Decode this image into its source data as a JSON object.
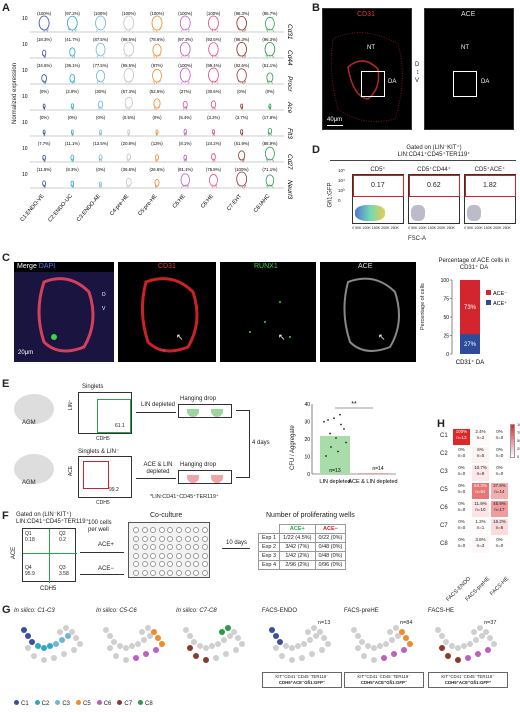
{
  "panels": {
    "a": "A",
    "b": "B",
    "c": "C",
    "d": "D",
    "e": "E",
    "f": "F",
    "g": "G",
    "h": "H"
  },
  "panelA": {
    "ylabel": "Normalized expression",
    "ytick": "10",
    "genes": [
      "Cd31",
      "Cd44",
      "Procr",
      "Ace",
      "Flt3",
      "Cd27",
      "Neurl3"
    ],
    "groups": [
      "C1:ENDO-VE",
      "C2:ENDO-UC",
      "C3:ENDO-AE",
      "C4:pre-HE^KO",
      "C5:pre-HE",
      "C6:HE^KO",
      "C6:HE",
      "C7:EHT",
      "C8:IAHC"
    ],
    "colors": [
      "#3b4ea0",
      "#2ea6c8",
      "#6db6d8",
      "#c5c5c5",
      "#f08a2a",
      "#bd5ec0",
      "#e04d8c",
      "#8c3a2d",
      "#2b9a4a"
    ],
    "pct": [
      [
        "(100%)",
        "(97.2%)",
        "(100%)",
        "(100%)",
        "(100%)",
        "(100%)",
        "(100%)",
        "(96.3%)",
        "(86.7%)"
      ],
      [
        "(18.3%)",
        "(41.7%)",
        "(87.5%)",
        "(98.5%)",
        "(78.6%)",
        "(97.3%)",
        "(93.5%)",
        "(96.3%)",
        "(96.3%)"
      ],
      [
        "(34.6%)",
        "(36.1%)",
        "(77.5%)",
        "(95.5%)",
        "(87%)",
        "(100%)",
        "(99.4%)",
        "(92.6%)",
        "(51.1%)"
      ],
      [
        "(0%)",
        "(2.8%)",
        "(30%)",
        "(67.3%)",
        "(52.6%)",
        "(27%)",
        "(30.6%)",
        "(0%)",
        "(0%)"
      ],
      [
        "(0%)",
        "(0%)",
        "(0%)",
        "(0.5%)",
        "(0%)",
        "(5.4%)",
        "(3.2%)",
        "(3.7%)",
        "(17.8%)"
      ],
      [
        "(7.7%)",
        "(11.1%)",
        "(12.5%)",
        "(20.8%)",
        "(13%)",
        "(8.1%)",
        "(24.2%)",
        "(51.9%)",
        "(88.9%)"
      ],
      [
        "(11.5%)",
        "(8.3%)",
        "(0%)",
        "(36.6%)",
        "(26.6%)",
        "(81.1%)",
        "(75.8%)",
        "(100%)",
        "(71.1%)"
      ]
    ]
  },
  "panelB": {
    "ch1": "CD31",
    "ch2": "ACE",
    "nt": "NT",
    "da": "DA",
    "d": "D",
    "v": "V",
    "scale": "40μm"
  },
  "panelC": {
    "merge": "Merge ",
    "dapi": "DAPI",
    "cd31": "CD31",
    "runx1": "RUNX1",
    "ace": "ACE",
    "scale": "20μm",
    "d": "D",
    "v": "V",
    "bar_title": "Percentage of ACE cells in CD31⁺ DA",
    "ylabel": "Percentage of cells",
    "yticks": [
      "100",
      "75",
      "50",
      "25",
      "0"
    ],
    "neg_label": "ACE⁻",
    "pos_label": "ACE⁺",
    "xlabel": "CD31⁺ DA",
    "neg_color": "#d3252f",
    "pos_color": "#2e4a9a"
  },
  "chart_data": {
    "type": "bar",
    "categories": [
      "CD31⁺ DA"
    ],
    "series": [
      {
        "name": "ACE⁻",
        "values": [
          73
        ]
      },
      {
        "name": "ACE⁺",
        "values": [
          27
        ]
      }
    ],
    "title": "Percentage of ACE cells in CD31⁺ DA",
    "ylabel": "Percentage of cells",
    "ylim": [
      0,
      100
    ]
  },
  "panelD": {
    "header1": "Gated on (LIN⁻KIT⁺)",
    "header2": "LIN:CD41⁺CD45⁺TER119⁺",
    "gates": [
      "CD5⁺",
      "CD5⁺CD44⁺",
      "CD5⁺ACE⁺"
    ],
    "values": [
      "0.17",
      "0.62",
      "1.82"
    ],
    "ylabel": "Gfi1:GFP",
    "xlabel": "FSC-A",
    "yticks": [
      "10⁵",
      "10⁴",
      "10³",
      "0"
    ],
    "xticks": "0  50K 100K 150K 200K 250K"
  },
  "panelE": {
    "agm": "AGM",
    "singlets": "Singlets",
    "singlets_lin": "Singlets & LIN⁻",
    "gate1": "61.1",
    "gate2": "99.2",
    "lin_depleted": "LIN depleted",
    "ace_lin_depleted": "ACE & LIN depleted",
    "hanging": "Hanging drop",
    "days": "4 days",
    "lin_axis": "LIN⁺",
    "ace_axis": "ACE",
    "cdh5": "CDH5",
    "footnote": "*LIN:CD41⁺CD45⁺TER119⁺",
    "chart_ylabel": "CFU / Aggregate",
    "sig": "**",
    "n1": "n=13",
    "n2": "n=14",
    "x1": "LIN depleted",
    "x2": "ACE & LIN depleted",
    "yticks": [
      "40",
      "30",
      "20",
      "10",
      "0"
    ]
  },
  "panelF": {
    "gate_title": "Gated on (LIN⁻KIT⁺)",
    "gate_sub": "LIN:CD41⁺CD45⁺TER119⁺",
    "q1": "Q1",
    "q1v": "0.18",
    "q2": "Q2",
    "q2v": "0.2",
    "q3": "Q3",
    "q3v": "3.58",
    "q4": "Q4",
    "q4v": "95.9",
    "yaxis": "ACE",
    "xaxis": "CDH5",
    "cells": "100 cells per well",
    "ace_pos": "ACE+",
    "ace_neg": "ACE−",
    "coculture": "Co-culture",
    "days": "10 days",
    "table_title": "Number of proliferating wells",
    "col1": "ACE+",
    "col2": "ACE−",
    "rows": [
      {
        "exp": "Exp 1",
        "pos": "1/22 (4.5%)",
        "neg": "0/22 (0%)"
      },
      {
        "exp": "Exp 2",
        "pos": "3/42 (7%)",
        "neg": "0/48 (0%)"
      },
      {
        "exp": "Exp 3",
        "pos": "1/42 (2%)",
        "neg": "0/48 (0%)"
      },
      {
        "exp": "Exp 4",
        "pos": "2/96 (2%)",
        "neg": "0/96 (0%)"
      }
    ]
  },
  "panelG": {
    "titles": [
      "In silico: C1-C3",
      "In silico: C5-C6",
      "In silico: C7-C8",
      "FACS-ENDO^ACE-NEG",
      "FACS-preHE^ACE-SP",
      "FACS-HE^ACE-DP"
    ],
    "n": [
      "n=13",
      "n=84",
      "n=37"
    ],
    "gates": [
      [
        "KIT⁺CD41⁻CD45⁻TER119⁻",
        "CDH5⁺ACE⁻Gfi1:GFP⁻"
      ],
      [
        "KIT⁺CD41⁻CD45⁻TER119⁻",
        "CDH5⁺ACE⁺Gfi1:GFP⁻"
      ],
      [
        "KIT⁺CD41⁻CD45⁻TER119⁻",
        "CDH5⁺ACE⁺Gfi1:GFP⁺"
      ]
    ],
    "legend": [
      "C1",
      "C2",
      "C3",
      "C5",
      "C6",
      "C7",
      "C8"
    ],
    "legend_colors": [
      "#3b4ea0",
      "#2ea6c8",
      "#6db6d8",
      "#f08a2a",
      "#bd5ec0",
      "#8c3a2d",
      "#2b9a4a"
    ]
  },
  "panelH": {
    "rows": [
      "C1",
      "C2",
      "C3",
      "C5",
      "C6",
      "C7",
      "C8"
    ],
    "cols": [
      "FACS-ENDO^ACE-NEG",
      "FACS-preHE^ACE-SP",
      "FACS-HE^ACE-DP"
    ],
    "legend_ticks": [
      "100",
      "75",
      "50",
      "25",
      "0"
    ],
    "cells": [
      [
        {
          "p": "100%",
          "n": "n=13",
          "v": 100
        },
        {
          "p": "2.4%",
          "n": "n=2",
          "v": 2.4
        },
        {
          "p": "0%",
          "n": "n=0",
          "v": 0
        }
      ],
      [
        {
          "p": "0%",
          "n": "n=0",
          "v": 0
        },
        {
          "p": "6%",
          "n": "n=5",
          "v": 6
        },
        {
          "p": "0%",
          "n": "n=0",
          "v": 0
        }
      ],
      [
        {
          "p": "0%",
          "n": "n=0",
          "v": 0
        },
        {
          "p": "10.7%",
          "n": "n=9",
          "v": 10.7
        },
        {
          "p": "0%",
          "n": "n=0",
          "v": 0
        }
      ],
      [
        {
          "p": "0%",
          "n": "n=0",
          "v": 0
        },
        {
          "p": "64.3%",
          "n": "n=54",
          "v": 64.3
        },
        {
          "p": "37.8%",
          "n": "n=14",
          "v": 37.8
        }
      ],
      [
        {
          "p": "0%",
          "n": "n=0",
          "v": 0
        },
        {
          "p": "11.9%",
          "n": "n=10",
          "v": 11.9
        },
        {
          "p": "45.9%",
          "n": "n=17",
          "v": 45.9
        }
      ],
      [
        {
          "p": "0%",
          "n": "n=0",
          "v": 0
        },
        {
          "p": "1.2%",
          "n": "n=1",
          "v": 1.2
        },
        {
          "p": "16.2%",
          "n": "n=6",
          "v": 16.2
        }
      ],
      [
        {
          "p": "0%",
          "n": "n=0",
          "v": 0
        },
        {
          "p": "3.6%",
          "n": "n=3",
          "v": 3.6
        },
        {
          "p": "0%",
          "n": "n=0",
          "v": 0
        }
      ]
    ]
  }
}
